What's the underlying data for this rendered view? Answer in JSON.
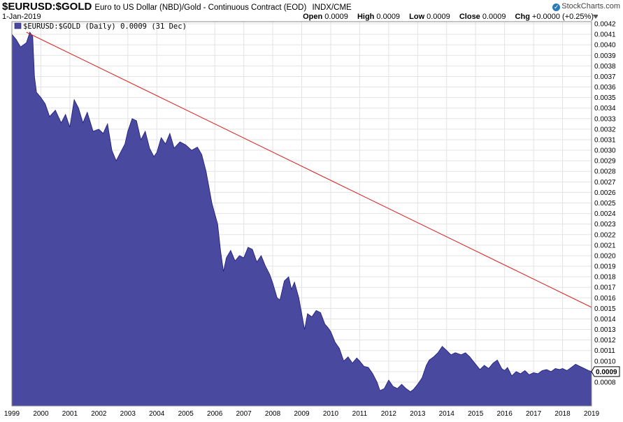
{
  "header": {
    "symbol": "$EURUSD:$GOLD",
    "description": "Euro to US Dollar (NBD)/Gold - Continuous Contract (EOD)",
    "exchange": "INDX/CME",
    "date": "1-Jan-2019",
    "open_label": "Open",
    "open": "0.0009",
    "high_label": "High",
    "high": "0.0009",
    "low_label": "Low",
    "low": "0.0009",
    "close_label": "Close",
    "close": "0.0009",
    "chg_label": "Chg",
    "chg": "+0.0000 (+0.25%)",
    "brand": "StockCharts.com",
    "brand_icon": "stockcharts-logo-icon",
    "settings_icon": "triangle-down-icon"
  },
  "legend": {
    "text": "$EURUSD:$GOLD (Daily) 0.0009 (31 Dec)",
    "swatch_icon": "area-swatch-icon"
  },
  "last_value_label": "0.0009",
  "colors": {
    "area_fill": "#4949a0",
    "area_line": "#1c1c7c",
    "trendline": "#dd2222",
    "grid": "#e3e3e3"
  },
  "chart_data": {
    "type": "area",
    "xlim": [
      1999.0,
      2019.0
    ],
    "ylim": [
      0.0007,
      0.0042
    ],
    "y_ticks": [
      "0.0008",
      "0.0009",
      "0.0010",
      "0.0011",
      "0.0012",
      "0.0013",
      "0.0014",
      "0.0015",
      "0.0016",
      "0.0017",
      "0.0018",
      "0.0019",
      "0.0020",
      "0.0021",
      "0.0022",
      "0.0023",
      "0.0024",
      "0.0025",
      "0.0026",
      "0.0027",
      "0.0028",
      "0.0029",
      "0.0030",
      "0.0031",
      "0.0032",
      "0.0033",
      "0.0034",
      "0.0035",
      "0.0036",
      "0.0037",
      "0.0038",
      "0.0039",
      "0.0040",
      "0.0041",
      "0.0042"
    ],
    "x_ticks": [
      "1999",
      "2000",
      "2001",
      "2002",
      "2003",
      "2004",
      "2005",
      "2006",
      "2007",
      "2008",
      "2009",
      "2010",
      "2011",
      "2012",
      "2013",
      "2014",
      "2015",
      "2016",
      "2017",
      "2018",
      "2019"
    ],
    "grid": true,
    "series": [
      {
        "values": [
          [
            1999.0,
            0.0041
          ],
          [
            1999.15,
            0.00405
          ],
          [
            1999.3,
            0.00398
          ],
          [
            1999.5,
            0.00402
          ],
          [
            1999.62,
            0.00412
          ],
          [
            1999.72,
            0.00408
          ],
          [
            1999.78,
            0.0037
          ],
          [
            1999.85,
            0.00355
          ],
          [
            2000.0,
            0.0035
          ],
          [
            2000.15,
            0.00344
          ],
          [
            2000.3,
            0.00332
          ],
          [
            2000.5,
            0.00338
          ],
          [
            2000.7,
            0.00326
          ],
          [
            2000.85,
            0.00334
          ],
          [
            2001.0,
            0.00322
          ],
          [
            2001.15,
            0.00348
          ],
          [
            2001.3,
            0.0034
          ],
          [
            2001.45,
            0.00326
          ],
          [
            2001.6,
            0.00336
          ],
          [
            2001.8,
            0.00318
          ],
          [
            2002.0,
            0.0032
          ],
          [
            2002.15,
            0.00316
          ],
          [
            2002.3,
            0.00325
          ],
          [
            2002.45,
            0.003
          ],
          [
            2002.6,
            0.0029
          ],
          [
            2002.75,
            0.00298
          ],
          [
            2002.9,
            0.00306
          ],
          [
            2003.0,
            0.00318
          ],
          [
            2003.15,
            0.0033
          ],
          [
            2003.3,
            0.00328
          ],
          [
            2003.45,
            0.0031
          ],
          [
            2003.6,
            0.00318
          ],
          [
            2003.75,
            0.00302
          ],
          [
            2003.9,
            0.00294
          ],
          [
            2004.0,
            0.00298
          ],
          [
            2004.15,
            0.00312
          ],
          [
            2004.3,
            0.00306
          ],
          [
            2004.45,
            0.00316
          ],
          [
            2004.6,
            0.00302
          ],
          [
            2004.8,
            0.00308
          ],
          [
            2005.0,
            0.00305
          ],
          [
            2005.2,
            0.003
          ],
          [
            2005.4,
            0.00303
          ],
          [
            2005.55,
            0.00296
          ],
          [
            2005.7,
            0.0028
          ],
          [
            2005.8,
            0.00265
          ],
          [
            2005.9,
            0.0025
          ],
          [
            2006.0,
            0.0024
          ],
          [
            2006.1,
            0.0023
          ],
          [
            2006.2,
            0.00205
          ],
          [
            2006.3,
            0.00185
          ],
          [
            2006.4,
            0.00198
          ],
          [
            2006.55,
            0.00205
          ],
          [
            2006.7,
            0.00195
          ],
          [
            2006.85,
            0.002
          ],
          [
            2007.0,
            0.00198
          ],
          [
            2007.15,
            0.00208
          ],
          [
            2007.3,
            0.00206
          ],
          [
            2007.45,
            0.00194
          ],
          [
            2007.6,
            0.002
          ],
          [
            2007.75,
            0.0019
          ],
          [
            2007.9,
            0.00182
          ],
          [
            2008.0,
            0.00174
          ],
          [
            2008.15,
            0.0016
          ],
          [
            2008.25,
            0.00158
          ],
          [
            2008.4,
            0.00176
          ],
          [
            2008.55,
            0.0018
          ],
          [
            2008.65,
            0.00168
          ],
          [
            2008.75,
            0.00175
          ],
          [
            2008.9,
            0.0016
          ],
          [
            2009.0,
            0.00145
          ],
          [
            2009.1,
            0.0013
          ],
          [
            2009.2,
            0.00145
          ],
          [
            2009.35,
            0.00142
          ],
          [
            2009.5,
            0.00148
          ],
          [
            2009.65,
            0.00146
          ],
          [
            2009.8,
            0.00135
          ],
          [
            2009.9,
            0.00132
          ],
          [
            2010.0,
            0.00128
          ],
          [
            2010.15,
            0.00118
          ],
          [
            2010.3,
            0.00112
          ],
          [
            2010.45,
            0.001
          ],
          [
            2010.6,
            0.00104
          ],
          [
            2010.75,
            0.00098
          ],
          [
            2010.9,
            0.00103
          ],
          [
            2011.0,
            0.001
          ],
          [
            2011.15,
            0.00095
          ],
          [
            2011.3,
            0.00094
          ],
          [
            2011.45,
            0.00088
          ],
          [
            2011.6,
            0.0008
          ],
          [
            2011.7,
            0.00072
          ],
          [
            2011.85,
            0.00074
          ],
          [
            2012.0,
            0.00082
          ],
          [
            2012.15,
            0.00076
          ],
          [
            2012.3,
            0.00074
          ],
          [
            2012.45,
            0.00078
          ],
          [
            2012.6,
            0.00074
          ],
          [
            2012.75,
            0.00071
          ],
          [
            2012.85,
            0.00073
          ],
          [
            2013.0,
            0.00078
          ],
          [
            2013.15,
            0.00084
          ],
          [
            2013.3,
            0.00096
          ],
          [
            2013.4,
            0.00101
          ],
          [
            2013.55,
            0.00104
          ],
          [
            2013.7,
            0.00108
          ],
          [
            2013.85,
            0.00114
          ],
          [
            2014.0,
            0.0011
          ],
          [
            2014.15,
            0.00106
          ],
          [
            2014.3,
            0.00108
          ],
          [
            2014.5,
            0.00106
          ],
          [
            2014.65,
            0.00108
          ],
          [
            2014.8,
            0.00104
          ],
          [
            2015.0,
            0.00097
          ],
          [
            2015.15,
            0.00092
          ],
          [
            2015.3,
            0.00096
          ],
          [
            2015.45,
            0.00093
          ],
          [
            2015.6,
            0.00098
          ],
          [
            2015.75,
            0.00101
          ],
          [
            2015.9,
            0.00093
          ],
          [
            2016.0,
            0.00091
          ],
          [
            2016.1,
            0.00094
          ],
          [
            2016.25,
            0.00086
          ],
          [
            2016.4,
            0.0009
          ],
          [
            2016.55,
            0.00088
          ],
          [
            2016.7,
            0.00091
          ],
          [
            2016.85,
            0.00087
          ],
          [
            2017.0,
            0.00089
          ],
          [
            2017.15,
            0.00088
          ],
          [
            2017.3,
            0.00091
          ],
          [
            2017.45,
            0.00092
          ],
          [
            2017.6,
            0.0009
          ],
          [
            2017.75,
            0.00093
          ],
          [
            2017.9,
            0.00092
          ],
          [
            2018.0,
            0.00093
          ],
          [
            2018.15,
            0.00091
          ],
          [
            2018.3,
            0.00094
          ],
          [
            2018.45,
            0.00097
          ],
          [
            2018.6,
            0.00095
          ],
          [
            2018.75,
            0.00093
          ],
          [
            2018.9,
            0.00091
          ],
          [
            2019.0,
            0.0009
          ]
        ]
      }
    ],
    "trendline": {
      "from": [
        1999.5,
        0.00412
      ],
      "to": [
        2019.0,
        0.00151
      ]
    }
  }
}
